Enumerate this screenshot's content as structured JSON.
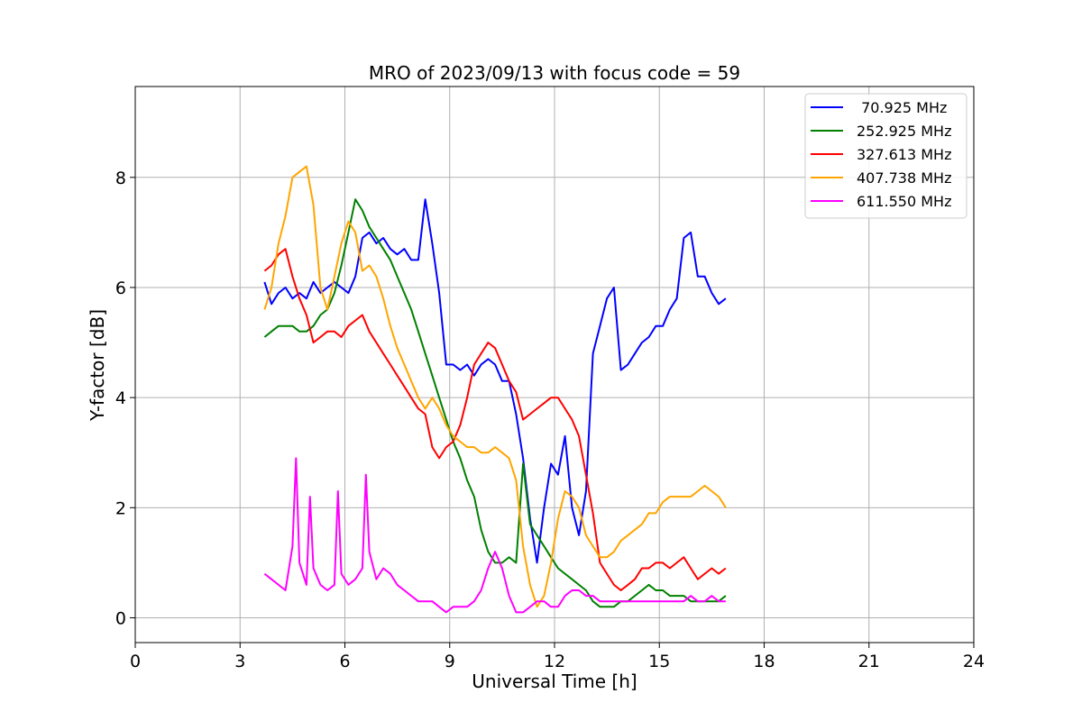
{
  "chart_data": {
    "type": "line",
    "title": "MRO of 2023/09/13 with focus code = 59",
    "xlabel": "Universal Time [h]",
    "ylabel": "Y-factor [dB]",
    "xlim": [
      0,
      24
    ],
    "ylim": [
      -0.45,
      9.65
    ],
    "xticks": [
      0,
      3,
      6,
      9,
      12,
      15,
      18,
      21,
      24
    ],
    "yticks": [
      0,
      2,
      4,
      6,
      8
    ],
    "grid": true,
    "legend_position": "top-right",
    "series": [
      {
        "name": " 70.925 MHz",
        "color": "#0000ff",
        "x": [
          3.7,
          3.9,
          4.1,
          4.3,
          4.5,
          4.7,
          4.9,
          5.1,
          5.3,
          5.5,
          5.7,
          5.9,
          6.1,
          6.3,
          6.5,
          6.7,
          6.9,
          7.1,
          7.3,
          7.5,
          7.7,
          7.9,
          8.1,
          8.3,
          8.5,
          8.7,
          8.9,
          9.1,
          9.3,
          9.5,
          9.7,
          9.9,
          10.1,
          10.3,
          10.5,
          10.7,
          10.9,
          11.1,
          11.3,
          11.5,
          11.7,
          11.9,
          12.1,
          12.3,
          12.5,
          12.7,
          12.9,
          13.1,
          13.3,
          13.5,
          13.7,
          13.9,
          14.1,
          14.3,
          14.5,
          14.7,
          14.9,
          15.1,
          15.3,
          15.5,
          15.7,
          15.9,
          16.1,
          16.3,
          16.5,
          16.7,
          16.9
        ],
        "y": [
          6.1,
          5.7,
          5.9,
          6.0,
          5.8,
          5.9,
          5.8,
          6.1,
          5.9,
          6.0,
          6.1,
          6.0,
          5.9,
          6.2,
          6.9,
          7.0,
          6.8,
          6.9,
          6.7,
          6.6,
          6.7,
          6.5,
          6.5,
          7.6,
          6.8,
          5.9,
          4.6,
          4.6,
          4.5,
          4.6,
          4.4,
          4.6,
          4.7,
          4.6,
          4.3,
          4.3,
          3.7,
          2.9,
          1.8,
          1.0,
          2.0,
          2.8,
          2.6,
          3.3,
          2.0,
          1.5,
          2.3,
          4.8,
          5.3,
          5.8,
          6.0,
          4.5,
          4.6,
          4.8,
          5.0,
          5.1,
          5.3,
          5.3,
          5.6,
          5.8,
          6.9,
          7.0,
          6.2,
          6.2,
          5.9,
          5.7,
          5.8
        ]
      },
      {
        "name": "252.925 MHz",
        "color": "#008000",
        "x": [
          3.7,
          3.9,
          4.1,
          4.3,
          4.5,
          4.7,
          4.9,
          5.1,
          5.3,
          5.5,
          5.7,
          5.9,
          6.1,
          6.3,
          6.5,
          6.7,
          6.9,
          7.1,
          7.3,
          7.5,
          7.7,
          7.9,
          8.1,
          8.3,
          8.5,
          8.7,
          8.9,
          9.1,
          9.3,
          9.5,
          9.7,
          9.9,
          10.1,
          10.3,
          10.5,
          10.7,
          10.9,
          11.1,
          11.3,
          11.5,
          11.7,
          11.9,
          12.1,
          12.3,
          12.5,
          12.7,
          12.9,
          13.1,
          13.3,
          13.5,
          13.7,
          13.9,
          14.1,
          14.3,
          14.5,
          14.7,
          14.9,
          15.1,
          15.3,
          15.5,
          15.7,
          15.9,
          16.1,
          16.3,
          16.5,
          16.7,
          16.9
        ],
        "y": [
          5.1,
          5.2,
          5.3,
          5.3,
          5.3,
          5.2,
          5.2,
          5.3,
          5.5,
          5.6,
          5.9,
          6.4,
          7.0,
          7.6,
          7.4,
          7.1,
          6.9,
          6.7,
          6.5,
          6.2,
          5.9,
          5.6,
          5.2,
          4.8,
          4.4,
          4.0,
          3.6,
          3.2,
          2.9,
          2.5,
          2.2,
          1.6,
          1.2,
          1.0,
          1.0,
          1.1,
          1.0,
          2.8,
          1.7,
          1.5,
          1.3,
          1.1,
          0.9,
          0.8,
          0.7,
          0.6,
          0.5,
          0.3,
          0.2,
          0.2,
          0.2,
          0.3,
          0.3,
          0.4,
          0.5,
          0.6,
          0.5,
          0.5,
          0.4,
          0.4,
          0.4,
          0.3,
          0.3,
          0.3,
          0.3,
          0.3,
          0.4
        ]
      },
      {
        "name": "327.613 MHz",
        "color": "#ff0000",
        "x": [
          3.7,
          3.9,
          4.1,
          4.3,
          4.5,
          4.7,
          4.9,
          5.1,
          5.3,
          5.5,
          5.7,
          5.9,
          6.1,
          6.3,
          6.5,
          6.7,
          6.9,
          7.1,
          7.3,
          7.5,
          7.7,
          7.9,
          8.1,
          8.3,
          8.5,
          8.7,
          8.9,
          9.1,
          9.3,
          9.5,
          9.7,
          9.9,
          10.1,
          10.3,
          10.5,
          10.7,
          10.9,
          11.1,
          11.3,
          11.5,
          11.7,
          11.9,
          12.1,
          12.3,
          12.5,
          12.7,
          12.9,
          13.1,
          13.3,
          13.5,
          13.7,
          13.9,
          14.1,
          14.3,
          14.5,
          14.7,
          14.9,
          15.1,
          15.3,
          15.5,
          15.7,
          15.9,
          16.1,
          16.3,
          16.5,
          16.7,
          16.9
        ],
        "y": [
          6.3,
          6.4,
          6.6,
          6.7,
          6.2,
          5.8,
          5.5,
          5.0,
          5.1,
          5.2,
          5.2,
          5.1,
          5.3,
          5.4,
          5.5,
          5.2,
          5.0,
          4.8,
          4.6,
          4.4,
          4.2,
          4.0,
          3.8,
          3.7,
          3.1,
          2.9,
          3.1,
          3.2,
          3.5,
          4.0,
          4.6,
          4.8,
          5.0,
          4.9,
          4.6,
          4.3,
          4.1,
          3.6,
          3.7,
          3.8,
          3.9,
          4.0,
          4.0,
          3.8,
          3.6,
          3.3,
          2.6,
          1.9,
          1.0,
          0.8,
          0.6,
          0.5,
          0.6,
          0.7,
          0.9,
          0.9,
          1.0,
          1.0,
          0.9,
          1.0,
          1.1,
          0.9,
          0.7,
          0.8,
          0.9,
          0.8,
          0.9
        ]
      },
      {
        "name": "407.738 MHz",
        "color": "#ffa500",
        "x": [
          3.7,
          3.9,
          4.1,
          4.3,
          4.5,
          4.7,
          4.9,
          5.1,
          5.3,
          5.5,
          5.7,
          5.9,
          6.1,
          6.3,
          6.5,
          6.7,
          6.9,
          7.1,
          7.3,
          7.5,
          7.7,
          7.9,
          8.1,
          8.3,
          8.5,
          8.7,
          8.9,
          9.1,
          9.3,
          9.5,
          9.7,
          9.9,
          10.1,
          10.3,
          10.5,
          10.7,
          10.9,
          11.1,
          11.3,
          11.5,
          11.7,
          11.9,
          12.1,
          12.3,
          12.5,
          12.7,
          12.9,
          13.1,
          13.3,
          13.5,
          13.7,
          13.9,
          14.1,
          14.3,
          14.5,
          14.7,
          14.9,
          15.1,
          15.3,
          15.5,
          15.7,
          15.9,
          16.1,
          16.3,
          16.5,
          16.7,
          16.9
        ],
        "y": [
          5.6,
          6.0,
          6.8,
          7.3,
          8.0,
          8.1,
          8.2,
          7.5,
          6.0,
          5.6,
          6.2,
          6.8,
          7.2,
          7.0,
          6.3,
          6.4,
          6.2,
          5.8,
          5.3,
          4.9,
          4.6,
          4.3,
          4.0,
          3.8,
          4.0,
          3.8,
          3.5,
          3.3,
          3.2,
          3.1,
          3.1,
          3.0,
          3.0,
          3.1,
          3.0,
          2.9,
          2.5,
          1.3,
          0.6,
          0.2,
          0.4,
          1.0,
          1.8,
          2.3,
          2.2,
          2.0,
          1.5,
          1.3,
          1.1,
          1.1,
          1.2,
          1.4,
          1.5,
          1.6,
          1.7,
          1.9,
          1.9,
          2.1,
          2.2,
          2.2,
          2.2,
          2.2,
          2.3,
          2.4,
          2.3,
          2.2,
          2.0
        ]
      },
      {
        "name": "611.550 MHz",
        "color": "#ff00ff",
        "x": [
          3.7,
          3.9,
          4.1,
          4.3,
          4.5,
          4.6,
          4.7,
          4.9,
          5.0,
          5.1,
          5.3,
          5.5,
          5.7,
          5.8,
          5.9,
          6.1,
          6.3,
          6.5,
          6.6,
          6.7,
          6.9,
          7.1,
          7.3,
          7.5,
          7.7,
          7.9,
          8.1,
          8.3,
          8.5,
          8.7,
          8.9,
          9.1,
          9.3,
          9.5,
          9.7,
          9.9,
          10.1,
          10.3,
          10.5,
          10.7,
          10.9,
          11.1,
          11.3,
          11.5,
          11.7,
          11.9,
          12.1,
          12.3,
          12.5,
          12.7,
          12.9,
          13.1,
          13.3,
          13.5,
          13.7,
          13.9,
          14.1,
          14.3,
          14.5,
          14.7,
          14.9,
          15.1,
          15.3,
          15.5,
          15.7,
          15.9,
          16.1,
          16.3,
          16.5,
          16.7,
          16.9
        ],
        "y": [
          0.8,
          0.7,
          0.6,
          0.5,
          1.3,
          2.9,
          1.0,
          0.6,
          2.2,
          0.9,
          0.6,
          0.5,
          0.6,
          2.3,
          0.8,
          0.6,
          0.7,
          0.9,
          2.6,
          1.2,
          0.7,
          0.9,
          0.8,
          0.6,
          0.5,
          0.4,
          0.3,
          0.3,
          0.3,
          0.2,
          0.1,
          0.2,
          0.2,
          0.2,
          0.3,
          0.5,
          0.9,
          1.2,
          0.9,
          0.4,
          0.1,
          0.1,
          0.2,
          0.3,
          0.3,
          0.2,
          0.2,
          0.4,
          0.5,
          0.5,
          0.4,
          0.4,
          0.3,
          0.3,
          0.3,
          0.3,
          0.3,
          0.3,
          0.3,
          0.3,
          0.3,
          0.3,
          0.3,
          0.3,
          0.3,
          0.4,
          0.3,
          0.3,
          0.4,
          0.3,
          0.3
        ]
      }
    ]
  }
}
